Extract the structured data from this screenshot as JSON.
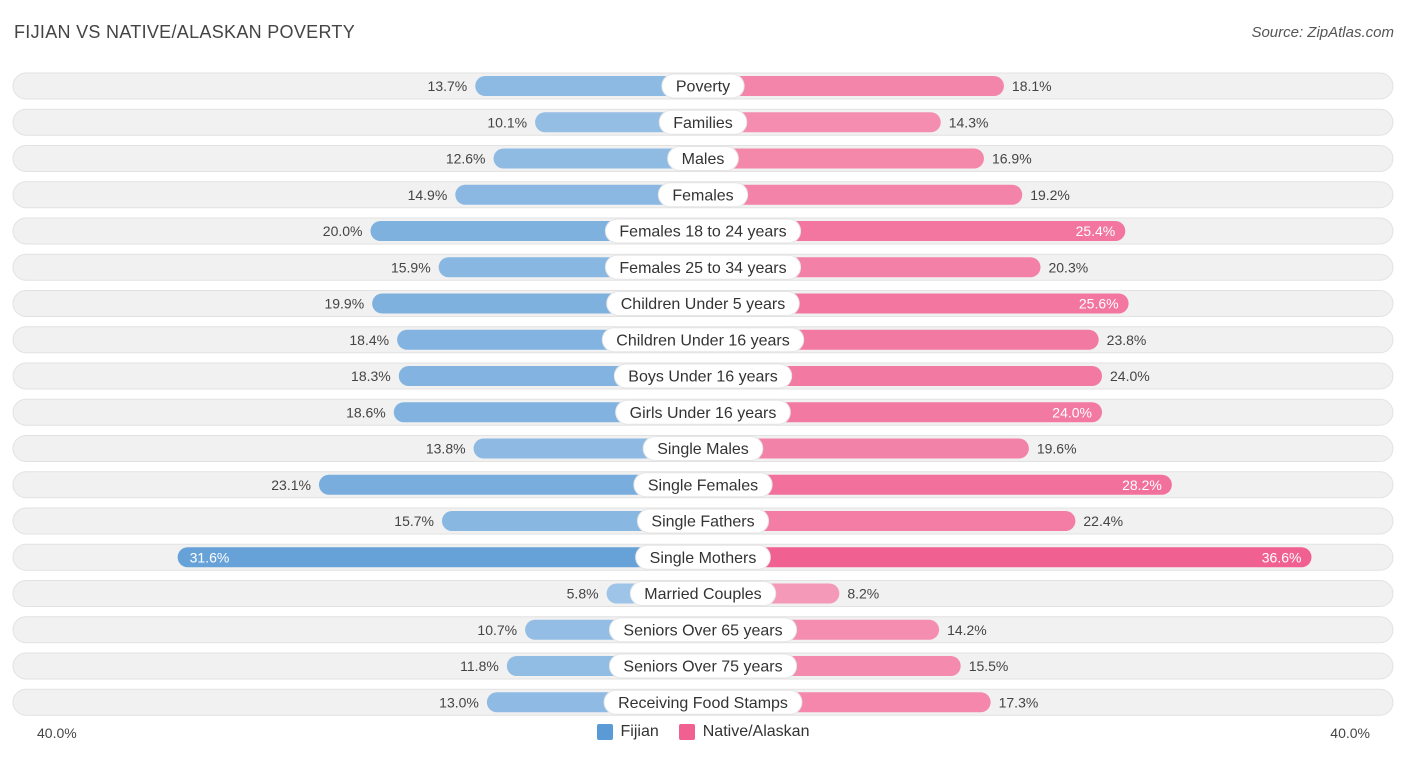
{
  "header": {
    "title": "FIJIAN VS NATIVE/ALASKAN POVERTY",
    "source": "Source: ZipAtlas.com"
  },
  "axis": {
    "left_label": "40.0%",
    "right_label": "40.0%"
  },
  "colors": {
    "fijian": "#5b9bd5",
    "native": "#f06090",
    "track": "#f0f0f0"
  },
  "chart_data": {
    "type": "bar",
    "orientation": "diverging-horizontal",
    "title": "FIJIAN VS NATIVE/ALASKAN POVERTY",
    "xlim": [
      -40,
      40
    ],
    "legend": [
      "Fijian",
      "Native/Alaskan"
    ],
    "categories": [
      "Poverty",
      "Families",
      "Males",
      "Females",
      "Females 18 to 24 years",
      "Females 25 to 34 years",
      "Children Under 5 years",
      "Children Under 16 years",
      "Boys Under 16 years",
      "Girls Under 16 years",
      "Single Males",
      "Single Females",
      "Single Fathers",
      "Single Mothers",
      "Married Couples",
      "Seniors Over 65 years",
      "Seniors Over 75 years",
      "Receiving Food Stamps"
    ],
    "series": [
      {
        "name": "Fijian",
        "values": [
          13.7,
          10.1,
          12.6,
          14.9,
          20.0,
          15.9,
          19.9,
          18.4,
          18.3,
          18.6,
          13.8,
          23.1,
          15.7,
          31.6,
          5.8,
          10.7,
          11.8,
          13.0
        ],
        "labels": [
          "13.7%",
          "10.1%",
          "12.6%",
          "14.9%",
          "20.0%",
          "15.9%",
          "19.9%",
          "18.4%",
          "18.3%",
          "18.6%",
          "13.8%",
          "23.1%",
          "15.7%",
          "31.6%",
          "5.8%",
          "10.7%",
          "11.8%",
          "13.0%"
        ]
      },
      {
        "name": "Native/Alaskan",
        "values": [
          18.1,
          14.3,
          16.9,
          19.2,
          25.4,
          20.3,
          25.6,
          23.8,
          24.0,
          24.0,
          19.6,
          28.2,
          22.4,
          36.6,
          8.2,
          14.2,
          15.5,
          17.3
        ],
        "labels": [
          "18.1%",
          "14.3%",
          "16.9%",
          "19.2%",
          "25.4%",
          "20.3%",
          "25.6%",
          "23.8%",
          "24.0%",
          "24.0%",
          "19.6%",
          "28.2%",
          "22.4%",
          "36.6%",
          "8.2%",
          "14.2%",
          "15.5%",
          "17.3%"
        ]
      }
    ]
  }
}
